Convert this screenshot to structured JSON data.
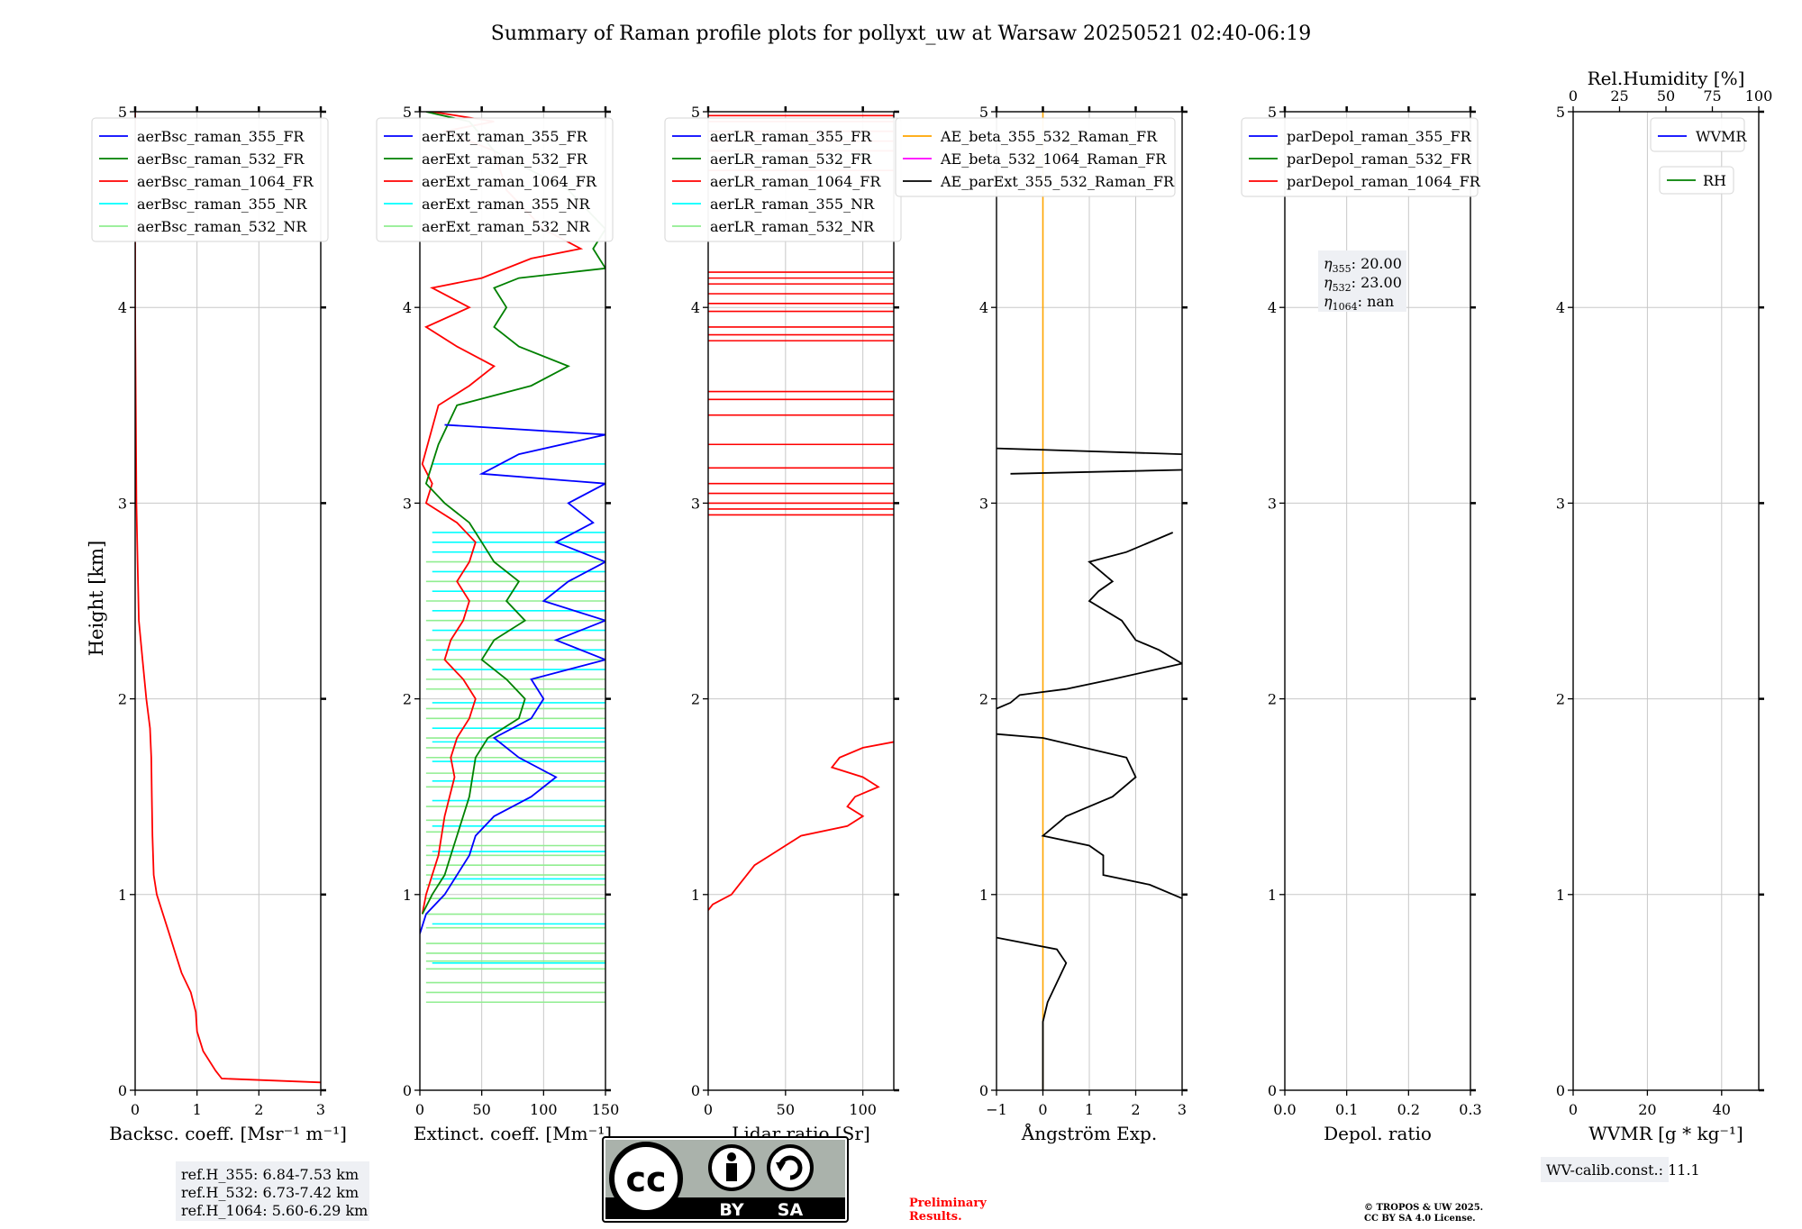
{
  "figure": {
    "title": "Summary of Raman profile plots for pollyxt_uw at Warsaw 20250521 02:40-06:19",
    "ylabel": "Height [km]",
    "preliminary": [
      "Preliminary",
      "Results."
    ],
    "copyright": [
      "© TROPOS & UW 2025.",
      "CC BY SA 4.0 License."
    ],
    "license_badge": {
      "text": "cc",
      "by": "BY",
      "sa": "SA"
    },
    "colors": {
      "blue": "#0000ff",
      "green": "#008000",
      "red": "#ff0000",
      "cyan": "#00ffff",
      "lightgreen": "#90ee90",
      "orange": "#ffa500",
      "magenta": "#ff00ff",
      "black": "#000000",
      "preliminary": "#ff0000"
    }
  },
  "chart_data": [
    {
      "type": "line",
      "xlabel": "Backsc. coeff. [Msr⁻¹ m⁻¹]",
      "xticks": [
        "0",
        "1",
        "2",
        "3"
      ],
      "xlim": [
        0,
        3
      ],
      "ylim": [
        0,
        5
      ],
      "yticks": [
        "0",
        "1",
        "2",
        "3",
        "4",
        "5"
      ],
      "legend": [
        "aerBsc_raman_355_FR",
        "aerBsc_raman_532_FR",
        "aerBsc_raman_1064_FR",
        "aerBsc_raman_355_NR",
        "aerBsc_raman_532_NR"
      ],
      "legend_colors": [
        "#0000ff",
        "#008000",
        "#ff0000",
        "#00ffff",
        "#90ee90"
      ],
      "info": [
        "ref.H_355: 6.84-7.53 km",
        "ref.H_532: 6.73-7.42 km",
        "ref.H_1064: 5.60-6.29 km"
      ],
      "series": [
        {
          "color": "#ff0000",
          "points": [
            [
              3.0,
              0.04
            ],
            [
              1.4,
              0.06
            ],
            [
              1.3,
              0.1
            ],
            [
              1.1,
              0.2
            ],
            [
              1.0,
              0.3
            ],
            [
              0.98,
              0.4
            ],
            [
              0.9,
              0.5
            ],
            [
              0.75,
              0.6
            ],
            [
              0.65,
              0.7
            ],
            [
              0.55,
              0.8
            ],
            [
              0.45,
              0.9
            ],
            [
              0.35,
              1.0
            ],
            [
              0.3,
              1.1
            ],
            [
              0.28,
              1.3
            ],
            [
              0.27,
              1.5
            ],
            [
              0.26,
              1.7
            ],
            [
              0.24,
              1.85
            ],
            [
              0.18,
              2.0
            ],
            [
              0.12,
              2.2
            ],
            [
              0.06,
              2.4
            ],
            [
              0.04,
              2.7
            ],
            [
              0.02,
              3.0
            ],
            [
              0.01,
              3.5
            ],
            [
              0.0,
              4.0
            ],
            [
              0.0,
              5.0
            ]
          ]
        }
      ]
    },
    {
      "type": "line",
      "xlabel": "Extinct. coeff. [Mm⁻¹]",
      "xticks": [
        "0",
        "50",
        "100",
        "150"
      ],
      "xlim": [
        0,
        150
      ],
      "ylim": [
        0,
        5
      ],
      "yticks": [
        "0",
        "1",
        "2",
        "3",
        "4",
        "5"
      ],
      "legend": [
        "aerExt_raman_355_FR",
        "aerExt_raman_532_FR",
        "aerExt_raman_1064_FR",
        "aerExt_raman_355_NR",
        "aerExt_raman_532_NR"
      ],
      "legend_colors": [
        "#0000ff",
        "#008000",
        "#ff0000",
        "#00ffff",
        "#90ee90"
      ],
      "hlines": [
        {
          "color": "#90ee90",
          "ys": [
            0.45,
            0.5,
            0.55,
            0.62,
            0.66,
            0.7,
            0.75,
            0.83,
            0.9,
            0.98,
            1.05,
            1.1,
            1.15,
            1.2,
            1.25,
            1.32,
            1.38,
            1.45,
            1.55,
            1.62,
            1.7,
            1.75,
            1.8,
            1.9,
            1.95,
            2.05,
            2.1,
            2.2,
            2.3,
            2.4,
            2.5,
            2.6,
            2.7
          ],
          "x0": 5,
          "x1": 150
        },
        {
          "color": "#00ffff",
          "ys": [
            0.65,
            0.85,
            1.08,
            1.22,
            1.35,
            1.48,
            1.58,
            1.68,
            1.78,
            1.85,
            1.98,
            2.15,
            2.25,
            2.35,
            2.45,
            2.55,
            2.65,
            2.75,
            2.8,
            2.85,
            3.2
          ],
          "x0": 10,
          "x1": 150
        }
      ],
      "series": [
        {
          "color": "#ff0000",
          "points": [
            [
              2,
              0.9
            ],
            [
              5,
              1.0
            ],
            [
              10,
              1.1
            ],
            [
              15,
              1.2
            ],
            [
              20,
              1.4
            ],
            [
              28,
              1.6
            ],
            [
              25,
              1.7
            ],
            [
              30,
              1.8
            ],
            [
              40,
              1.9
            ],
            [
              45,
              2.0
            ],
            [
              35,
              2.1
            ],
            [
              20,
              2.2
            ],
            [
              25,
              2.3
            ],
            [
              35,
              2.4
            ],
            [
              40,
              2.5
            ],
            [
              30,
              2.6
            ],
            [
              40,
              2.7
            ],
            [
              45,
              2.8
            ],
            [
              30,
              2.9
            ],
            [
              5,
              3.0
            ],
            [
              10,
              3.1
            ],
            [
              2,
              3.2
            ],
            [
              15,
              3.5
            ],
            [
              40,
              3.6
            ],
            [
              60,
              3.7
            ],
            [
              30,
              3.8
            ],
            [
              5,
              3.9
            ],
            [
              40,
              4.0
            ],
            [
              10,
              4.1
            ],
            [
              50,
              4.15
            ],
            [
              90,
              4.25
            ],
            [
              130,
              4.3
            ],
            [
              100,
              4.4
            ],
            [
              70,
              4.6
            ],
            [
              60,
              4.8
            ],
            [
              20,
              4.9
            ],
            [
              60,
              4.95
            ],
            [
              10,
              5.0
            ]
          ]
        },
        {
          "color": "#008000",
          "points": [
            [
              2,
              0.9
            ],
            [
              10,
              1.0
            ],
            [
              20,
              1.1
            ],
            [
              25,
              1.2
            ],
            [
              30,
              1.3
            ],
            [
              40,
              1.5
            ],
            [
              45,
              1.7
            ],
            [
              55,
              1.8
            ],
            [
              80,
              1.9
            ],
            [
              85,
              2.0
            ],
            [
              70,
              2.1
            ],
            [
              50,
              2.2
            ],
            [
              60,
              2.3
            ],
            [
              85,
              2.4
            ],
            [
              70,
              2.5
            ],
            [
              80,
              2.6
            ],
            [
              60,
              2.7
            ],
            [
              50,
              2.8
            ],
            [
              40,
              2.9
            ],
            [
              20,
              3.0
            ],
            [
              5,
              3.1
            ],
            [
              15,
              3.3
            ],
            [
              30,
              3.5
            ],
            [
              90,
              3.6
            ],
            [
              120,
              3.7
            ],
            [
              80,
              3.8
            ],
            [
              60,
              3.9
            ],
            [
              70,
              4.0
            ],
            [
              60,
              4.1
            ],
            [
              80,
              4.15
            ],
            [
              150,
              4.2
            ],
            [
              140,
              4.3
            ],
            [
              150,
              4.4
            ],
            [
              120,
              4.6
            ],
            [
              60,
              4.8
            ],
            [
              40,
              4.95
            ],
            [
              5,
              5.0
            ]
          ]
        },
        {
          "color": "#0000ff",
          "points": [
            [
              0,
              0.8
            ],
            [
              5,
              0.9
            ],
            [
              20,
              1.0
            ],
            [
              30,
              1.1
            ],
            [
              40,
              1.2
            ],
            [
              45,
              1.3
            ],
            [
              60,
              1.4
            ],
            [
              90,
              1.5
            ],
            [
              110,
              1.6
            ],
            [
              80,
              1.7
            ],
            [
              60,
              1.8
            ],
            [
              90,
              1.9
            ],
            [
              100,
              2.0
            ],
            [
              90,
              2.1
            ],
            [
              150,
              2.2
            ],
            [
              110,
              2.3
            ],
            [
              150,
              2.4
            ],
            [
              100,
              2.5
            ],
            [
              120,
              2.6
            ],
            [
              150,
              2.7
            ],
            [
              110,
              2.8
            ],
            [
              140,
              2.9
            ],
            [
              120,
              3.0
            ],
            [
              150,
              3.1
            ],
            [
              50,
              3.15
            ],
            [
              80,
              3.25
            ],
            [
              150,
              3.35
            ],
            [
              20,
              3.4
            ]
          ]
        }
      ]
    },
    {
      "type": "line",
      "xlabel": "Lidar ratio [Sr]",
      "xticks": [
        "0",
        "50",
        "100"
      ],
      "xlim": [
        0,
        120
      ],
      "ylim": [
        0,
        5
      ],
      "yticks": [
        "0",
        "1",
        "2",
        "3",
        "4",
        "5"
      ],
      "legend": [
        "aerLR_raman_355_FR",
        "aerLR_raman_532_FR",
        "aerLR_raman_1064_FR",
        "aerLR_raman_355_NR",
        "aerLR_raman_532_NR"
      ],
      "legend_colors": [
        "#0000ff",
        "#008000",
        "#ff0000",
        "#00ffff",
        "#90ee90"
      ],
      "hlines": [
        {
          "color": "#ff0000",
          "ys": [
            2.94,
            2.97,
            3.0,
            3.05,
            3.1,
            3.18,
            3.3,
            3.45,
            3.53,
            3.57,
            3.83,
            3.86,
            3.9,
            3.98,
            4.02,
            4.07,
            4.12,
            4.15,
            4.18,
            4.7,
            4.8,
            4.85,
            4.9,
            4.95,
            4.98
          ],
          "x0": 0,
          "x1": 120
        }
      ],
      "series": [
        {
          "color": "#ff0000",
          "points": [
            [
              0,
              0.92
            ],
            [
              3,
              0.95
            ],
            [
              15,
              1.0
            ],
            [
              20,
              1.05
            ],
            [
              25,
              1.1
            ],
            [
              30,
              1.15
            ],
            [
              40,
              1.2
            ],
            [
              50,
              1.25
            ],
            [
              60,
              1.3
            ],
            [
              90,
              1.35
            ],
            [
              100,
              1.4
            ],
            [
              90,
              1.45
            ],
            [
              95,
              1.5
            ],
            [
              110,
              1.55
            ],
            [
              100,
              1.6
            ],
            [
              80,
              1.65
            ],
            [
              85,
              1.7
            ],
            [
              100,
              1.75
            ],
            [
              120,
              1.78
            ]
          ]
        }
      ]
    },
    {
      "type": "line",
      "xlabel": "Ångström Exp.",
      "xticks": [
        "−1",
        "0",
        "1",
        "2",
        "3"
      ],
      "xlim": [
        -1,
        3
      ],
      "ylim": [
        0,
        5
      ],
      "yticks": [
        "0",
        "1",
        "2",
        "3",
        "4",
        "5"
      ],
      "legend": [
        "AE_beta_355_532_Raman_FR",
        "AE_beta_532_1064_Raman_FR",
        "AE_parExt_355_532_Raman_FR"
      ],
      "legend_colors": [
        "#ffa500",
        "#ff00ff",
        "#000000"
      ],
      "vline": {
        "color": "#ffa500",
        "x": 0
      },
      "series": [
        {
          "color": "#000000",
          "points": [
            [
              -1,
              0.78
            ],
            [
              0.3,
              0.72
            ],
            [
              0.5,
              0.65
            ],
            [
              0.3,
              0.55
            ],
            [
              0.1,
              0.45
            ],
            [
              0,
              0.35
            ],
            [
              0,
              0
            ]
          ]
        },
        {
          "color": "#000000",
          "points": [
            [
              3,
              0.98
            ],
            [
              2.3,
              1.05
            ],
            [
              1.3,
              1.1
            ],
            [
              1.3,
              1.2
            ],
            [
              1.0,
              1.25
            ],
            [
              0,
              1.3
            ],
            [
              0.5,
              1.4
            ],
            [
              1.5,
              1.5
            ],
            [
              2.0,
              1.6
            ],
            [
              1.8,
              1.7
            ],
            [
              0,
              1.8
            ],
            [
              -1,
              1.82
            ]
          ]
        },
        {
          "color": "#000000",
          "points": [
            [
              -1,
              1.95
            ],
            [
              -0.7,
              1.98
            ],
            [
              -0.5,
              2.02
            ],
            [
              0.5,
              2.05
            ],
            [
              1.5,
              2.1
            ],
            [
              3.0,
              2.18
            ],
            [
              2.5,
              2.25
            ],
            [
              2.0,
              2.3
            ],
            [
              1.7,
              2.4
            ],
            [
              1.0,
              2.5
            ],
            [
              1.2,
              2.55
            ],
            [
              1.5,
              2.6
            ],
            [
              1.0,
              2.7
            ],
            [
              1.8,
              2.75
            ],
            [
              2.8,
              2.85
            ]
          ]
        },
        {
          "color": "#000000",
          "points": [
            [
              -1,
              3.28
            ],
            [
              3.0,
              3.25
            ]
          ]
        },
        {
          "color": "#000000",
          "points": [
            [
              -0.7,
              3.15
            ],
            [
              3.0,
              3.17
            ]
          ]
        }
      ]
    },
    {
      "type": "line",
      "xlabel": "Depol. ratio",
      "xticks": [
        "0.0",
        "0.1",
        "0.2",
        "0.3"
      ],
      "xlim": [
        0,
        0.3
      ],
      "ylim": [
        0,
        5
      ],
      "yticks": [
        "0",
        "1",
        "2",
        "3",
        "4",
        "5"
      ],
      "legend": [
        "parDepol_raman_355_FR",
        "parDepol_raman_532_FR",
        "parDepol_raman_1064_FR"
      ],
      "legend_colors": [
        "#0000ff",
        "#008000",
        "#ff0000"
      ],
      "eta": [
        {
          "sym": "η",
          "sub": "355",
          "val": ": 20.00"
        },
        {
          "sym": "η",
          "sub": "532",
          "val": ": 23.00"
        },
        {
          "sym": "η",
          "sub": "1064",
          "val": ": nan"
        }
      ],
      "series": []
    },
    {
      "type": "line",
      "xlabel": "WVMR [g * kg⁻¹]",
      "xticks": [
        "0",
        "20",
        "40"
      ],
      "xlim": [
        0,
        50
      ],
      "ylim": [
        0,
        5
      ],
      "yticks": [
        "0",
        "1",
        "2",
        "3",
        "4",
        "5"
      ],
      "top_axis": {
        "label": "Rel.Humidity [%]",
        "ticks": [
          "0",
          "25",
          "50",
          "75",
          "100"
        ]
      },
      "legend": [
        "WVMR"
      ],
      "legend_colors": [
        "#0000ff"
      ],
      "legend2": [
        "RH"
      ],
      "legend2_colors": [
        "#008000"
      ],
      "info": [
        "WV-calib.const.: 11.1"
      ],
      "series": []
    }
  ]
}
